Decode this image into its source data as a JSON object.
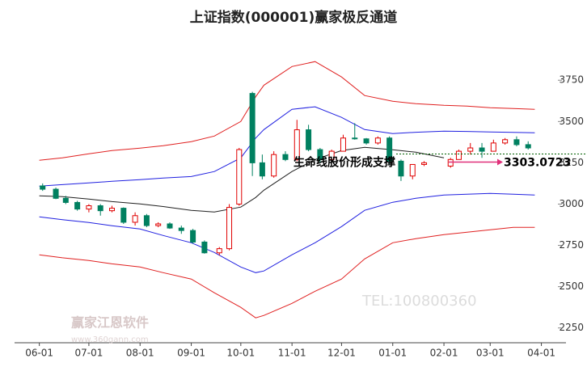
{
  "chart_data": {
    "type": "candlestick",
    "title": "上证指数(000001)赢家极反通道",
    "xlim": [
      "05-17",
      "04-11"
    ],
    "xticks": [
      "06-01",
      "07-01",
      "08-01",
      "09-01",
      "10-01",
      "11-01",
      "12-01",
      "01-01",
      "02-01",
      "03-01",
      "04-01"
    ],
    "ylim": [
      2180,
      4040
    ],
    "yticks": [
      2250,
      2500,
      2750,
      3000,
      3250,
      3500,
      3750
    ],
    "up_color": "#e00000",
    "down_color": "#008060",
    "candles": {
      "x": [
        "06-03",
        "06-11",
        "06-17",
        "06-24",
        "07-01",
        "07-08",
        "07-15",
        "07-22",
        "07-29",
        "08-05",
        "08-12",
        "08-19",
        "08-26",
        "09-02",
        "09-09",
        "09-18",
        "09-24",
        "09-30",
        "10-08",
        "10-14",
        "10-21",
        "10-28",
        "11-04",
        "11-11",
        "11-18",
        "11-25",
        "12-02",
        "12-09",
        "12-16",
        "12-23",
        "12-30",
        "01-06",
        "01-13",
        "01-20",
        "02-05",
        "02-10",
        "02-17",
        "02-24",
        "03-03",
        "03-10",
        "03-17",
        "03-24"
      ],
      "open": [
        3110,
        3090,
        3035,
        3010,
        2970,
        2990,
        2960,
        2975,
        2890,
        2930,
        2870,
        2880,
        2855,
        2840,
        2770,
        2705,
        2730,
        3000,
        3670,
        3250,
        3170,
        3300,
        3270,
        3450,
        3330,
        3270,
        3320,
        3400,
        3395,
        3370,
        3400,
        3260,
        3170,
        3240,
        3230,
        3270,
        3320,
        3340,
        3320,
        3370,
        3390,
        3360
      ],
      "high": [
        3125,
        3100,
        3050,
        3020,
        3000,
        3000,
        2990,
        2980,
        2950,
        2940,
        2890,
        2890,
        2870,
        2850,
        2780,
        2740,
        3000,
        3340,
        3680,
        3300,
        3320,
        3320,
        3510,
        3480,
        3340,
        3330,
        3420,
        3490,
        3400,
        3410,
        3410,
        3270,
        3240,
        3260,
        3280,
        3330,
        3370,
        3370,
        3390,
        3400,
        3410,
        3380
      ],
      "low": [
        3080,
        3030,
        3000,
        2960,
        2950,
        2930,
        2950,
        2880,
        2870,
        2860,
        2860,
        2850,
        2820,
        2760,
        2700,
        2690,
        2720,
        2990,
        3170,
        3150,
        3160,
        3260,
        3260,
        3320,
        3250,
        3260,
        3320,
        3390,
        3360,
        3360,
        3240,
        3140,
        3150,
        3230,
        3220,
        3270,
        3300,
        3280,
        3320,
        3360,
        3350,
        3330
      ],
      "close": [
        3090,
        3035,
        3010,
        2970,
        2990,
        2960,
        2975,
        2890,
        2930,
        2870,
        2880,
        2855,
        2840,
        2770,
        2705,
        2730,
        2980,
        3330,
        3250,
        3170,
        3300,
        3270,
        3450,
        3330,
        3270,
        3320,
        3400,
        3395,
        3370,
        3400,
        3260,
        3170,
        3240,
        3250,
        3270,
        3320,
        3340,
        3320,
        3370,
        3390,
        3360,
        3340
      ]
    },
    "x": [
      "06-01",
      "06-15",
      "07-01",
      "07-15",
      "08-01",
      "08-15",
      "09-01",
      "09-15",
      "10-01",
      "10-10",
      "10-15",
      "11-01",
      "11-15",
      "12-01",
      "12-15",
      "01-01",
      "01-15",
      "02-01",
      "02-15",
      "03-01",
      "03-15",
      "03-28"
    ],
    "series": [
      {
        "color": "#e02020",
        "values": [
          3265,
          3280,
          3305,
          3324,
          3339,
          3354,
          3378,
          3412,
          3500,
          3650,
          3720,
          3833,
          3863,
          3770,
          3657,
          3623,
          3608,
          3598,
          3593,
          3584,
          3579,
          3574
        ]
      },
      {
        "color": "#2020e0",
        "values": [
          3109,
          3118,
          3128,
          3138,
          3148,
          3158,
          3167,
          3197,
          3280,
          3400,
          3451,
          3574,
          3589,
          3525,
          3451,
          3427,
          3435,
          3442,
          3440,
          3437,
          3434,
          3432
        ]
      },
      {
        "color": "#202020",
        "values": [
          3050,
          3045,
          3030,
          3015,
          3001,
          2985,
          2962,
          2952,
          2982,
          3040,
          3084,
          3197,
          3270,
          3324,
          3344,
          3329,
          3314,
          3280,
          null,
          null,
          null,
          null
        ]
      },
      {
        "color": "#2020e0",
        "values": [
          2923,
          2906,
          2889,
          2869,
          2849,
          2810,
          2766,
          2707,
          2619,
          2585,
          2595,
          2693,
          2766,
          2864,
          2962,
          3011,
          3035,
          3055,
          3060,
          3065,
          3060,
          3055
        ]
      },
      {
        "color": "#e02020",
        "values": [
          2693,
          2675,
          2658,
          2638,
          2619,
          2585,
          2546,
          2463,
          2375,
          2311,
          2326,
          2399,
          2472,
          2546,
          2668,
          2766,
          2791,
          2815,
          2830,
          2844,
          2859,
          2859
        ]
      }
    ],
    "annotation": "生命线股价形成支撑",
    "support": {
      "value": 3303.0723,
      "label": "3303.0723"
    },
    "watermarks": [
      "赢家江恩软件",
      "www.360gann.com",
      "TEL:100800360"
    ]
  }
}
